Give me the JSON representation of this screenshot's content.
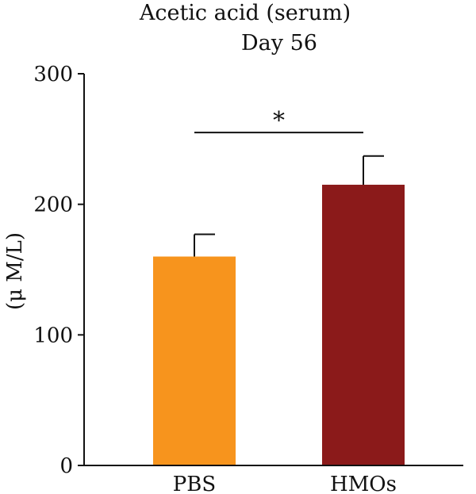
{
  "chart_data": {
    "type": "bar",
    "title": "Acetic acid (serum)",
    "subtitle": "Day 56",
    "ylabel": "(μ M/L)",
    "xlabel": "",
    "ylim": [
      0,
      300
    ],
    "yticks": [
      0,
      100,
      200,
      300
    ],
    "categories": [
      "PBS",
      "HMOs"
    ],
    "values": [
      160,
      215
    ],
    "errors": [
      17,
      22
    ],
    "colors": [
      "#F7941D",
      "#8B1A1A"
    ],
    "significance": {
      "from": 0,
      "to": 1,
      "label": "*",
      "y": 255
    },
    "grid": false,
    "legend": "none"
  }
}
